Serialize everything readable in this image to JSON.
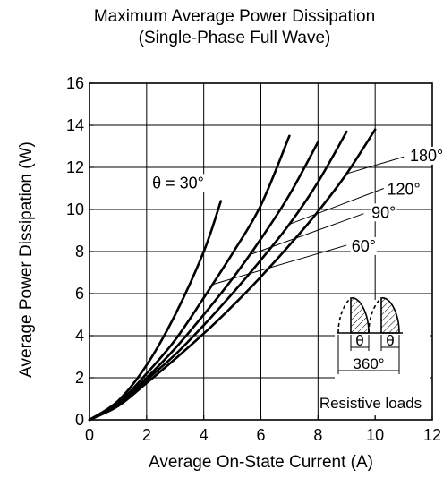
{
  "chart_data": {
    "type": "line",
    "title": "Maximum Average Power Dissipation",
    "subtitle": "(Single-Phase Full Wave)",
    "xlabel": "Average On-State Current  (A)",
    "ylabel": "Average Power Dissipation  (W)",
    "xlim": [
      0,
      12
    ],
    "ylim": [
      0,
      16
    ],
    "xticks": [
      "0",
      "2",
      "4",
      "6",
      "8",
      "10",
      "12"
    ],
    "yticks": [
      "0",
      "2",
      "4",
      "6",
      "8",
      "10",
      "12",
      "14",
      "16"
    ],
    "grid": true,
    "series": [
      {
        "name": "θ = 30°",
        "points": [
          [
            0,
            0
          ],
          [
            1,
            0.9
          ],
          [
            2,
            2.6
          ],
          [
            3,
            5.0
          ],
          [
            4,
            8.0
          ],
          [
            4.6,
            10.4
          ]
        ]
      },
      {
        "name": "60°",
        "points": [
          [
            0,
            0
          ],
          [
            1,
            0.8
          ],
          [
            2,
            2.2
          ],
          [
            3,
            3.8
          ],
          [
            4,
            5.8
          ],
          [
            5,
            7.9
          ],
          [
            6,
            10.2
          ],
          [
            7,
            13.5
          ]
        ]
      },
      {
        "name": "90°",
        "points": [
          [
            0,
            0
          ],
          [
            1,
            0.75
          ],
          [
            2,
            2.0
          ],
          [
            3,
            3.4
          ],
          [
            4,
            5.0
          ],
          [
            5,
            6.7
          ],
          [
            6,
            8.6
          ],
          [
            7,
            10.7
          ],
          [
            8,
            13.2
          ]
        ]
      },
      {
        "name": "120°",
        "points": [
          [
            0,
            0
          ],
          [
            1,
            0.7
          ],
          [
            2,
            1.9
          ],
          [
            3,
            3.1
          ],
          [
            4,
            4.5
          ],
          [
            5,
            6.0
          ],
          [
            6,
            7.6
          ],
          [
            7,
            9.3
          ],
          [
            8,
            11.3
          ],
          [
            9,
            13.7
          ]
        ]
      },
      {
        "name": "180°",
        "points": [
          [
            0,
            0
          ],
          [
            1,
            0.65
          ],
          [
            2,
            1.75
          ],
          [
            3,
            2.9
          ],
          [
            4,
            4.1
          ],
          [
            5,
            5.4
          ],
          [
            6,
            6.8
          ],
          [
            7,
            8.3
          ],
          [
            8,
            9.9
          ],
          [
            9,
            11.7
          ],
          [
            10,
            13.8
          ]
        ]
      }
    ],
    "inset": {
      "theta_label": "θ",
      "period_label": "360°",
      "caption": "Resistive loads"
    }
  }
}
